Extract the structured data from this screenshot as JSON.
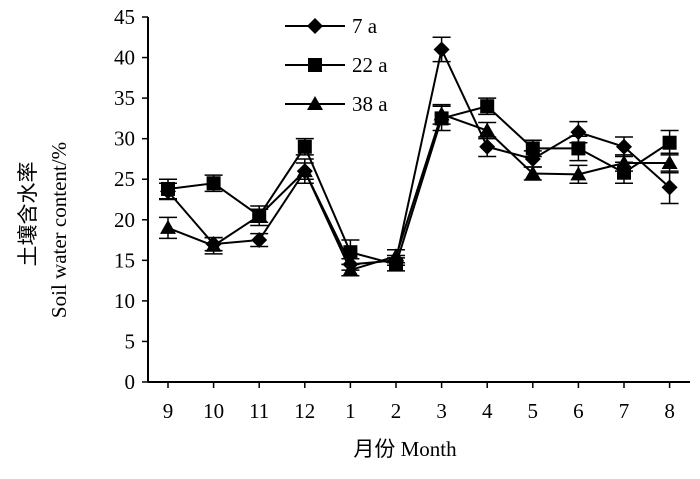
{
  "chart_data": {
    "type": "line",
    "title": "",
    "xlabel": "月份 Month",
    "ylabel": "土壤含水率",
    "ylabel2": "Soil water content/%",
    "categories": [
      "9",
      "10",
      "11",
      "12",
      "1",
      "2",
      "3",
      "4",
      "5",
      "6",
      "7",
      "8"
    ],
    "ylim": [
      0,
      45
    ],
    "yticks": [
      "0",
      "5",
      "10",
      "15",
      "20",
      "25",
      "30",
      "35",
      "40",
      "45"
    ],
    "legend_position": "top-center",
    "grid": false,
    "series": [
      {
        "name": "7 a",
        "marker": "diamond",
        "values": [
          23.5,
          17.0,
          17.5,
          26.0,
          14.5,
          15.0,
          41.0,
          29.0,
          27.5,
          30.8,
          29.0,
          24.0
        ],
        "errors": [
          1.0,
          0.8,
          0.8,
          1.0,
          0.7,
          0.6,
          1.5,
          1.2,
          1.0,
          1.3,
          1.2,
          2.0
        ]
      },
      {
        "name": "22 a",
        "marker": "square",
        "values": [
          23.8,
          24.5,
          20.5,
          29.0,
          16.0,
          14.5,
          32.5,
          34.0,
          28.8,
          28.8,
          25.8,
          29.5
        ],
        "errors": [
          1.2,
          1.0,
          1.2,
          1.0,
          1.5,
          0.8,
          1.5,
          1.0,
          1.0,
          1.5,
          1.3,
          1.5
        ]
      },
      {
        "name": "38 a",
        "marker": "triangle",
        "values": [
          19.0,
          16.8,
          20.5,
          26.0,
          13.8,
          15.5,
          33.0,
          31.0,
          25.7,
          25.6,
          27.0,
          27.0
        ],
        "errors": [
          1.3,
          1.0,
          0.8,
          1.5,
          0.7,
          0.8,
          1.2,
          1.0,
          0.8,
          1.1,
          1.0,
          1.2
        ]
      }
    ]
  }
}
